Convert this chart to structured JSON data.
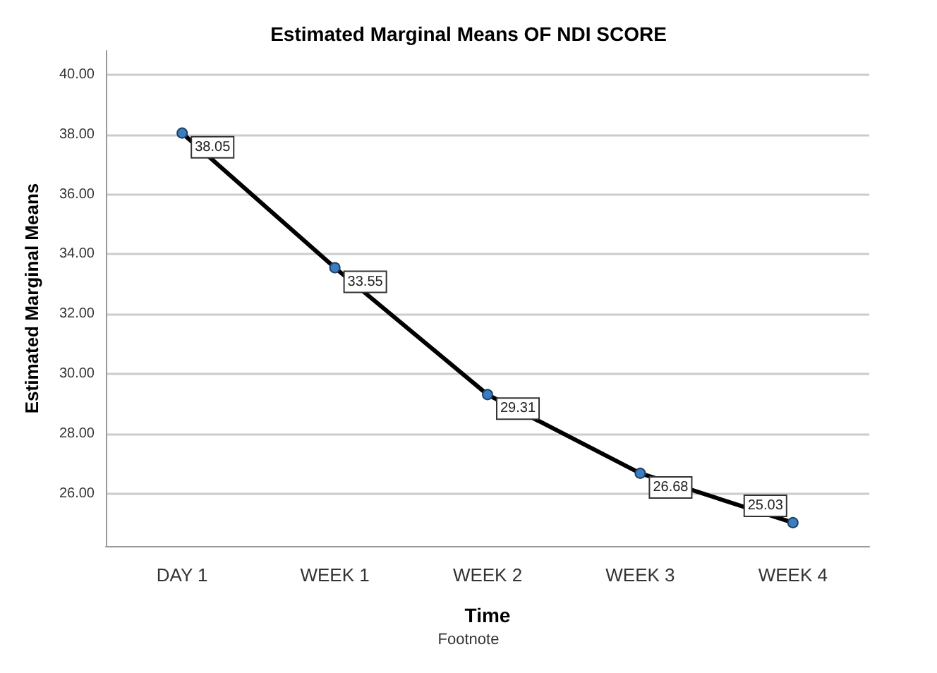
{
  "chart_data": {
    "type": "line",
    "title": "Estimated Marginal Means OF NDI SCORE",
    "xlabel": "Time",
    "ylabel": "Estimated Marginal Means",
    "annotations": [
      "Footnote"
    ],
    "categories": [
      "DAY 1",
      "WEEK 1",
      "WEEK 2",
      "WEEK 3",
      "WEEK 4"
    ],
    "series": [
      {
        "color": "#000000",
        "values": [
          38.05,
          33.55,
          29.31,
          26.68,
          25.03
        ]
      }
    ],
    "ylim": [
      24.25,
      40.8
    ],
    "yticks": [
      {
        "value": 26,
        "label": "26.00"
      },
      {
        "value": 28,
        "label": "28.00"
      },
      {
        "value": 30,
        "label": "30.00"
      },
      {
        "value": 32,
        "label": "32.00"
      },
      {
        "value": 34,
        "label": "34.00"
      },
      {
        "value": 36,
        "label": "36.00"
      },
      {
        "value": 38,
        "label": "38.00"
      },
      {
        "value": 40,
        "label": "40.00"
      }
    ],
    "grid": "y",
    "marker": "circle",
    "line_style": "solid",
    "data_labels": true
  }
}
